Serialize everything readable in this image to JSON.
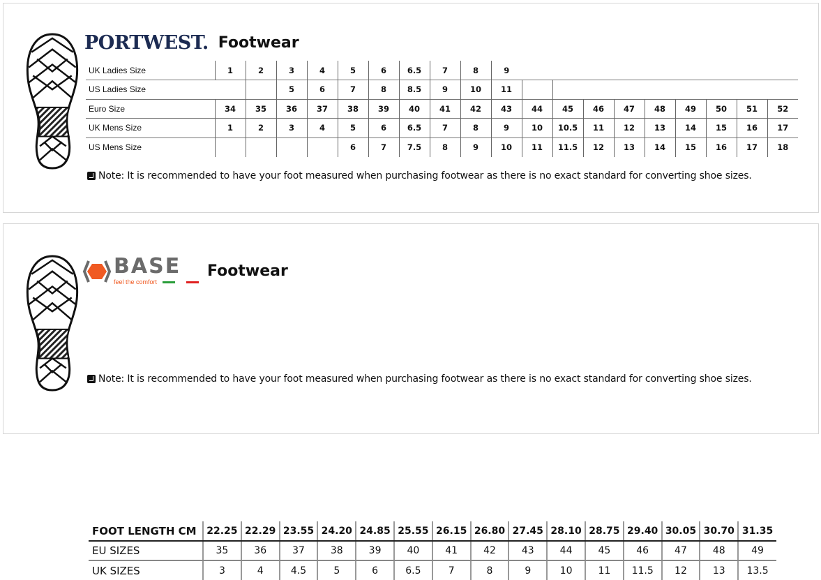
{
  "portwest": {
    "logo_text": "PORTWEST.",
    "title": "Footwear",
    "rows": [
      {
        "label": "UK Ladies Size",
        "values": [
          "1",
          "2",
          "3",
          "4",
          "5",
          "6",
          "6.5",
          "7",
          "8",
          "9",
          "",
          "",
          "",
          "",
          "",
          "",
          "",
          "",
          ""
        ]
      },
      {
        "label": "US Ladies Size",
        "values": [
          "",
          "",
          "5",
          "6",
          "7",
          "8",
          "8.5",
          "9",
          "10",
          "11",
          "",
          "",
          "",
          "",
          "",
          "",
          "",
          "",
          ""
        ]
      },
      {
        "label": "Euro Size",
        "values": [
          "34",
          "35",
          "36",
          "37",
          "38",
          "39",
          "40",
          "41",
          "42",
          "43",
          "44",
          "45",
          "46",
          "47",
          "48",
          "49",
          "50",
          "51",
          "52"
        ]
      },
      {
        "label": "UK Mens Size",
        "values": [
          "1",
          "2",
          "3",
          "4",
          "5",
          "6",
          "6.5",
          "7",
          "8",
          "9",
          "10",
          "10.5",
          "11",
          "12",
          "13",
          "14",
          "15",
          "16",
          "17"
        ]
      },
      {
        "label": "US Mens Size",
        "values": [
          "",
          "",
          "",
          "",
          "6",
          "7",
          "7.5",
          "8",
          "9",
          "10",
          "11",
          "11.5",
          "12",
          "13",
          "14",
          "15",
          "16",
          "17",
          "18"
        ]
      }
    ],
    "note": "Note: It is recommended to have your foot measured when purchasing footwear as there is no exact standard for converting shoe sizes."
  },
  "base": {
    "logo_text": "Base",
    "logo_tagline": "feel the comfort",
    "title": "Footwear",
    "rows": [
      {
        "label": "FOOT LENGTH CM",
        "values": [
          "22.25",
          "22.29",
          "23.55",
          "24.20",
          "24.85",
          "25.55",
          "26.15",
          "26.80",
          "27.45",
          "28.10",
          "28.75",
          "29.40",
          "30.05",
          "30.70",
          "31.35"
        ]
      },
      {
        "label": "EU SIZES",
        "values": [
          "35",
          "36",
          "37",
          "38",
          "39",
          "40",
          "41",
          "42",
          "43",
          "44",
          "45",
          "46",
          "47",
          "48",
          "49"
        ]
      },
      {
        "label": "UK SIZES",
        "values": [
          "3",
          "4",
          "4.5",
          "5",
          "6",
          "6.5",
          "7",
          "8",
          "9",
          "10",
          "11",
          "11.5",
          "12",
          "13",
          "13.5"
        ]
      }
    ],
    "note": "Note: It is recommended to have your foot measured when purchasing footwear as there is no exact standard for converting shoe sizes."
  },
  "colors": {
    "portwest_navy": "#1c2b52",
    "base_orange": "#f05a22",
    "base_grey": "#6b6b6b"
  }
}
